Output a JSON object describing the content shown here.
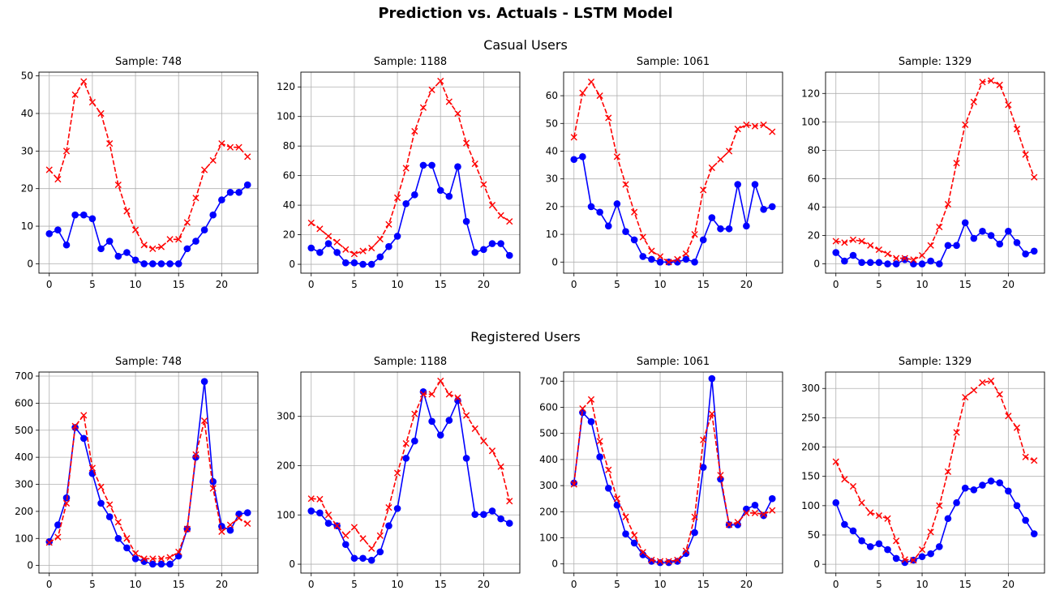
{
  "suptitle": "Prediction vs. Actuals - LSTM Model",
  "row_titles": [
    "Casual Users",
    "Registered Users"
  ],
  "colors": {
    "actual": "#0000ff",
    "predicted": "#ff0000",
    "grid": "#b0b0b0"
  },
  "chart_data": [
    {
      "type": "line",
      "title": "Sample: 748",
      "group": "Casual Users",
      "x": [
        0,
        1,
        2,
        3,
        4,
        5,
        6,
        7,
        8,
        9,
        10,
        11,
        12,
        13,
        14,
        15,
        16,
        17,
        18,
        19,
        20,
        21,
        22,
        23
      ],
      "xlim": [
        -1.2,
        24.2
      ],
      "ylim": [
        -2.5,
        51
      ],
      "xticks": [
        0,
        5,
        10,
        15,
        20
      ],
      "yticks": [
        0,
        10,
        20,
        30,
        40,
        50
      ],
      "series": [
        {
          "style": "solid-circle",
          "color": "#0000ff",
          "values": [
            8,
            9,
            5,
            13,
            13,
            12,
            4,
            6,
            2,
            3,
            1,
            0,
            0,
            0,
            0,
            0,
            4,
            6,
            9,
            13,
            17,
            19,
            19,
            21
          ]
        },
        {
          "style": "dashed-x",
          "color": "#ff0000",
          "values": [
            25,
            22.5,
            30,
            45,
            48.5,
            43,
            40,
            32,
            21,
            14,
            9,
            5,
            4,
            4.5,
            6.5,
            6.5,
            11,
            17.5,
            25,
            27.5,
            32,
            31,
            31,
            28.5
          ]
        }
      ]
    },
    {
      "type": "line",
      "title": "Sample: 1188",
      "group": "Casual Users",
      "x": [
        0,
        1,
        2,
        3,
        4,
        5,
        6,
        7,
        8,
        9,
        10,
        11,
        12,
        13,
        14,
        15,
        16,
        17,
        18,
        19,
        20,
        21,
        22,
        23
      ],
      "xlim": [
        -1.2,
        24.2
      ],
      "ylim": [
        -6,
        130
      ],
      "xticks": [
        0,
        5,
        10,
        15,
        20
      ],
      "yticks": [
        0,
        20,
        40,
        60,
        80,
        100,
        120
      ],
      "series": [
        {
          "style": "solid-circle",
          "color": "#0000ff",
          "values": [
            11,
            8,
            14,
            8,
            1,
            1,
            0,
            0,
            5,
            12,
            19,
            41,
            47,
            67,
            67,
            50,
            46,
            66,
            29,
            8,
            10,
            14,
            14,
            6
          ]
        },
        {
          "style": "dashed-x",
          "color": "#ff0000",
          "values": [
            28,
            24,
            19,
            15,
            10,
            7,
            9,
            11,
            17,
            27,
            45,
            65,
            90,
            106,
            118,
            124,
            110,
            102,
            82,
            68,
            54,
            40,
            33,
            29
          ]
        }
      ]
    },
    {
      "type": "line",
      "title": "Sample: 1061",
      "group": "Casual Users",
      "x": [
        0,
        1,
        2,
        3,
        4,
        5,
        6,
        7,
        8,
        9,
        10,
        11,
        12,
        13,
        14,
        15,
        16,
        17,
        18,
        19,
        20,
        21,
        22,
        23
      ],
      "xlim": [
        -1.2,
        24.2
      ],
      "ylim": [
        -4,
        68.5
      ],
      "xticks": [
        0,
        5,
        10,
        15,
        20
      ],
      "yticks": [
        0,
        10,
        20,
        30,
        40,
        50,
        60
      ],
      "series": [
        {
          "style": "solid-circle",
          "color": "#0000ff",
          "values": [
            37,
            38,
            20,
            18,
            13,
            21,
            11,
            8,
            2,
            1,
            0,
            0,
            0,
            1,
            0,
            8,
            16,
            12,
            12,
            28,
            13,
            28,
            19,
            20
          ]
        },
        {
          "style": "dashed-x",
          "color": "#ff0000",
          "values": [
            45,
            61,
            65,
            60,
            52,
            38,
            28,
            18,
            9,
            4,
            2,
            0,
            1,
            3,
            10,
            26,
            34,
            37,
            40,
            48,
            49.5,
            49,
            49.5,
            47
          ]
        }
      ]
    },
    {
      "type": "line",
      "title": "Sample: 1329",
      "group": "Casual Users",
      "x": [
        0,
        1,
        2,
        3,
        4,
        5,
        6,
        7,
        8,
        9,
        10,
        11,
        12,
        13,
        14,
        15,
        16,
        17,
        18,
        19,
        20,
        21,
        22,
        23
      ],
      "xlim": [
        -1.2,
        24.2
      ],
      "ylim": [
        -6.5,
        135
      ],
      "xticks": [
        0,
        5,
        10,
        15,
        20
      ],
      "yticks": [
        0,
        20,
        40,
        60,
        80,
        100,
        120
      ],
      "series": [
        {
          "style": "solid-circle",
          "color": "#0000ff",
          "values": [
            8,
            2,
            6,
            1,
            1,
            1,
            0,
            0,
            3,
            0,
            0,
            2,
            0,
            13,
            13,
            29,
            18,
            23,
            20,
            14,
            23,
            15,
            7,
            9
          ]
        },
        {
          "style": "dashed-x",
          "color": "#ff0000",
          "values": [
            16,
            15,
            17,
            16,
            13,
            10,
            7,
            4,
            4,
            3,
            6,
            13,
            26,
            42,
            71,
            98,
            114,
            128,
            129,
            126,
            112,
            95,
            77,
            61
          ]
        }
      ]
    },
    {
      "type": "line",
      "title": "Sample: 748",
      "group": "Registered Users",
      "x": [
        0,
        1,
        2,
        3,
        4,
        5,
        6,
        7,
        8,
        9,
        10,
        11,
        12,
        13,
        14,
        15,
        16,
        17,
        18,
        19,
        20,
        21,
        22,
        23
      ],
      "xlim": [
        -1.2,
        24.2
      ],
      "ylim": [
        -28,
        715
      ],
      "xticks": [
        0,
        5,
        10,
        15,
        20
      ],
      "yticks": [
        0,
        100,
        200,
        300,
        400,
        500,
        600,
        700
      ],
      "series": [
        {
          "style": "solid-circle",
          "color": "#0000ff",
          "values": [
            88,
            150,
            250,
            510,
            470,
            340,
            230,
            180,
            100,
            65,
            25,
            15,
            5,
            5,
            5,
            35,
            135,
            400,
            680,
            310,
            145,
            130,
            190,
            195
          ]
        },
        {
          "style": "dashed-x",
          "color": "#ff0000",
          "values": [
            85,
            105,
            230,
            515,
            555,
            360,
            290,
            225,
            160,
            100,
            45,
            25,
            25,
            25,
            30,
            50,
            135,
            410,
            535,
            285,
            125,
            150,
            175,
            155
          ]
        }
      ]
    },
    {
      "type": "line",
      "title": "Sample: 1188",
      "group": "Registered Users",
      "x": [
        0,
        1,
        2,
        3,
        4,
        5,
        6,
        7,
        8,
        9,
        10,
        11,
        12,
        13,
        14,
        15,
        16,
        17,
        18,
        19,
        20,
        21,
        22,
        23
      ],
      "xlim": [
        -1.2,
        24.2
      ],
      "ylim": [
        -18,
        390
      ],
      "xticks": [
        0,
        5,
        10,
        15,
        20
      ],
      "yticks": [
        0,
        100,
        200,
        300
      ],
      "series": [
        {
          "style": "solid-circle",
          "color": "#0000ff",
          "values": [
            108,
            104,
            83,
            78,
            40,
            12,
            12,
            8,
            25,
            78,
            113,
            215,
            250,
            350,
            290,
            262,
            292,
            332,
            215,
            101,
            101,
            108,
            92,
            83
          ]
        },
        {
          "style": "dashed-x",
          "color": "#ff0000",
          "values": [
            133,
            132,
            100,
            78,
            58,
            75,
            52,
            32,
            58,
            115,
            185,
            245,
            305,
            345,
            345,
            372,
            345,
            338,
            302,
            275,
            250,
            230,
            198,
            128
          ]
        }
      ]
    },
    {
      "type": "line",
      "title": "Sample: 1061",
      "group": "Registered Users",
      "x": [
        0,
        1,
        2,
        3,
        4,
        5,
        6,
        7,
        8,
        9,
        10,
        11,
        12,
        13,
        14,
        15,
        16,
        17,
        18,
        19,
        20,
        21,
        22,
        23
      ],
      "xlim": [
        -1.2,
        24.2
      ],
      "ylim": [
        -35,
        735
      ],
      "xticks": [
        0,
        5,
        10,
        15,
        20
      ],
      "yticks": [
        0,
        100,
        200,
        300,
        400,
        500,
        600,
        700
      ],
      "series": [
        {
          "style": "solid-circle",
          "color": "#0000ff",
          "values": [
            310,
            580,
            545,
            410,
            290,
            225,
            115,
            80,
            35,
            10,
            5,
            5,
            10,
            40,
            120,
            370,
            710,
            325,
            150,
            150,
            210,
            225,
            185,
            250
          ]
        },
        {
          "style": "dashed-x",
          "color": "#ff0000",
          "values": [
            305,
            595,
            630,
            470,
            360,
            250,
            180,
            110,
            45,
            15,
            10,
            10,
            15,
            50,
            180,
            475,
            575,
            340,
            150,
            160,
            195,
            195,
            190,
            205
          ]
        }
      ]
    },
    {
      "type": "line",
      "title": "Sample: 1329",
      "group": "Registered Users",
      "x": [
        0,
        1,
        2,
        3,
        4,
        5,
        6,
        7,
        8,
        9,
        10,
        11,
        12,
        13,
        14,
        15,
        16,
        17,
        18,
        19,
        20,
        21,
        22,
        23
      ],
      "xlim": [
        -1.2,
        24.2
      ],
      "ylim": [
        -15,
        328
      ],
      "xticks": [
        0,
        5,
        10,
        15,
        20
      ],
      "yticks": [
        0,
        50,
        100,
        150,
        200,
        250,
        300
      ],
      "series": [
        {
          "style": "solid-circle",
          "color": "#0000ff",
          "values": [
            105,
            68,
            57,
            40,
            30,
            35,
            25,
            10,
            3,
            7,
            13,
            18,
            30,
            78,
            105,
            130,
            127,
            135,
            142,
            139,
            125,
            100,
            75,
            52
          ]
        },
        {
          "style": "dashed-x",
          "color": "#ff0000",
          "values": [
            175,
            145,
            133,
            105,
            88,
            83,
            78,
            40,
            8,
            7,
            25,
            55,
            100,
            158,
            225,
            285,
            297,
            310,
            313,
            290,
            253,
            233,
            183,
            177
          ]
        }
      ]
    }
  ]
}
